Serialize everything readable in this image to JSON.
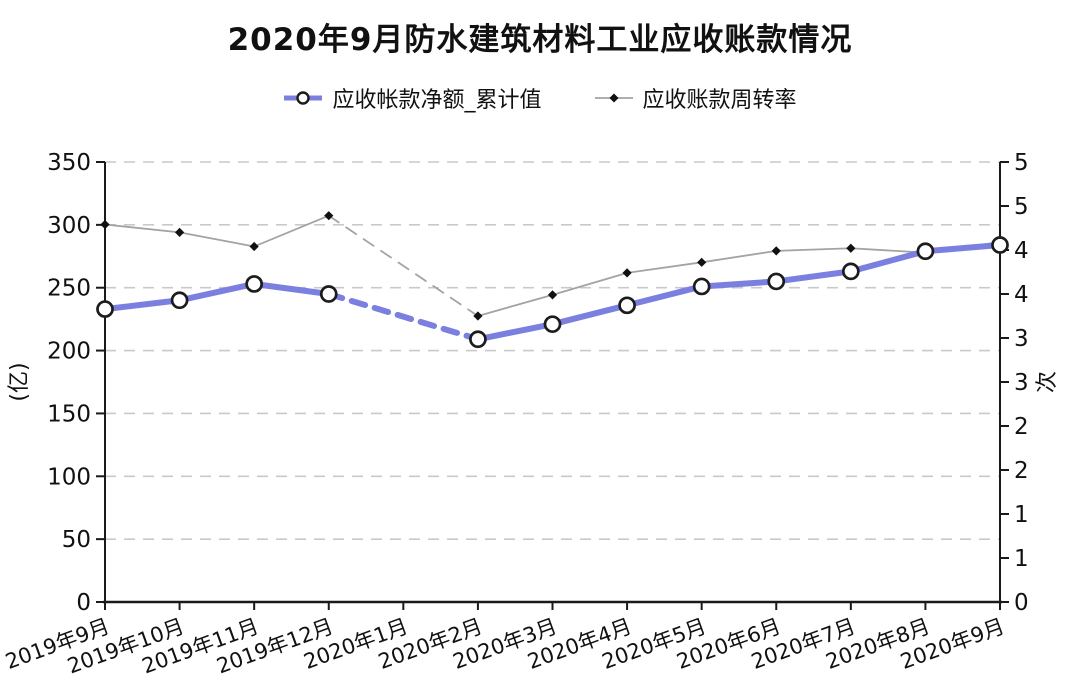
{
  "title": "2020年9月防水建筑材料工业应收账款情况",
  "chart_data": {
    "type": "line",
    "categories": [
      "2019年9月",
      "2019年10月",
      "2019年11月",
      "2019年12月",
      "2020年1月",
      "2020年2月",
      "2020年3月",
      "2020年4月",
      "2020年5月",
      "2020年6月",
      "2020年7月",
      "2020年8月",
      "2020年9月"
    ],
    "series": [
      {
        "name": "应收帐款净额_累计值",
        "axis": "left",
        "marker": "circle",
        "color": "#7b80e0",
        "values": [
          233,
          240,
          253,
          245,
          null,
          209,
          221,
          236,
          251,
          255,
          263,
          279,
          284
        ]
      },
      {
        "name": "应收账款周转率",
        "axis": "right",
        "marker": "diamond",
        "color": "#a3a3a3",
        "values": [
          4.29,
          4.2,
          4.04,
          4.39,
          null,
          3.25,
          3.49,
          3.74,
          3.86,
          3.99,
          4.02,
          3.97,
          4.09
        ]
      }
    ],
    "left_axis": {
      "label": "(亿)",
      "min": 0,
      "max": 350,
      "tick_step": 50,
      "ticks": [
        "0",
        "50",
        "100",
        "150",
        "200",
        "250",
        "300",
        "350"
      ]
    },
    "right_axis": {
      "label": "次",
      "min": 0,
      "max": 5,
      "tick_step": 0.5,
      "ticks": [
        "0",
        "1",
        "1",
        "2",
        "2",
        "3",
        "3",
        "4",
        "4",
        "5",
        "5"
      ]
    },
    "grid": "horizontal-dashed",
    "legend_position": "top",
    "missing_data_note": "2020年1月 bridged with dashed segments",
    "colors": {
      "grid": "#c9c9c9",
      "axis": "#1a1a1a",
      "marker_stroke": "#1c1c1c",
      "diamond_fill": "#111111"
    }
  }
}
